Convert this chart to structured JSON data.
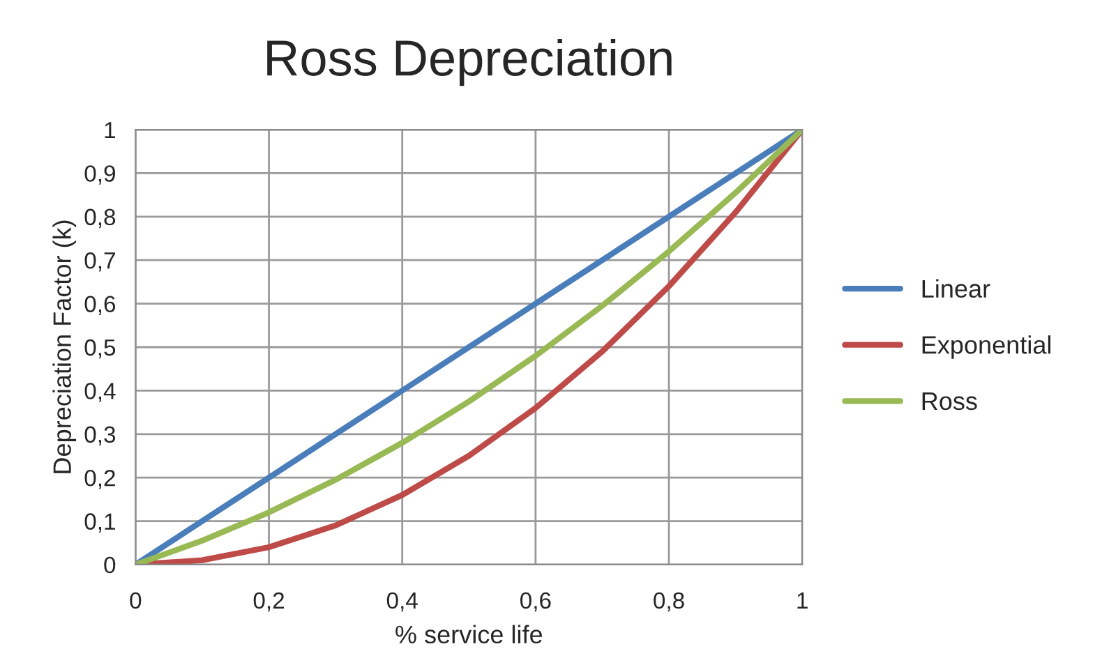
{
  "chart_data": {
    "type": "line",
    "title": "Ross Depreciation",
    "xlabel": "% service life",
    "ylabel": "Depreciation Factor (k)",
    "x": [
      0,
      0.1,
      0.2,
      0.3,
      0.4,
      0.5,
      0.6,
      0.7,
      0.8,
      0.9,
      1
    ],
    "series": [
      {
        "name": "Linear",
        "color": "#4a7ebb",
        "values": [
          0,
          0.1,
          0.2,
          0.3,
          0.4,
          0.5,
          0.6,
          0.7,
          0.8,
          0.9,
          1
        ]
      },
      {
        "name": "Exponential",
        "color": "#be4b48",
        "values": [
          0,
          0.01,
          0.04,
          0.09,
          0.16,
          0.25,
          0.36,
          0.49,
          0.64,
          0.81,
          1
        ]
      },
      {
        "name": "Ross",
        "color": "#98b954",
        "values": [
          0,
          0.055,
          0.12,
          0.195,
          0.28,
          0.375,
          0.48,
          0.595,
          0.72,
          0.855,
          1
        ]
      }
    ],
    "xlim": [
      0,
      1
    ],
    "ylim": [
      0,
      1
    ],
    "xticks": [
      0,
      {
        "value": 0.2,
        "label": "0,2"
      },
      {
        "value": 0.4,
        "label": "0,4"
      },
      {
        "value": 0.6,
        "label": "0,6"
      },
      {
        "value": 0.8,
        "label": "0,8"
      },
      1
    ],
    "yticks": [
      0,
      {
        "value": 0.1,
        "label": "0,1"
      },
      {
        "value": 0.2,
        "label": "0,2"
      },
      {
        "value": 0.3,
        "label": "0,3"
      },
      {
        "value": 0.4,
        "label": "0,4"
      },
      {
        "value": 0.5,
        "label": "0,5"
      },
      {
        "value": 0.6,
        "label": "0,6"
      },
      {
        "value": 0.7,
        "label": "0,7"
      },
      {
        "value": 0.8,
        "label": "0,8"
      },
      {
        "value": 0.9,
        "label": "0,9"
      },
      1
    ],
    "grid": true,
    "legend": "right",
    "marker": "none",
    "line_style": "solid"
  }
}
